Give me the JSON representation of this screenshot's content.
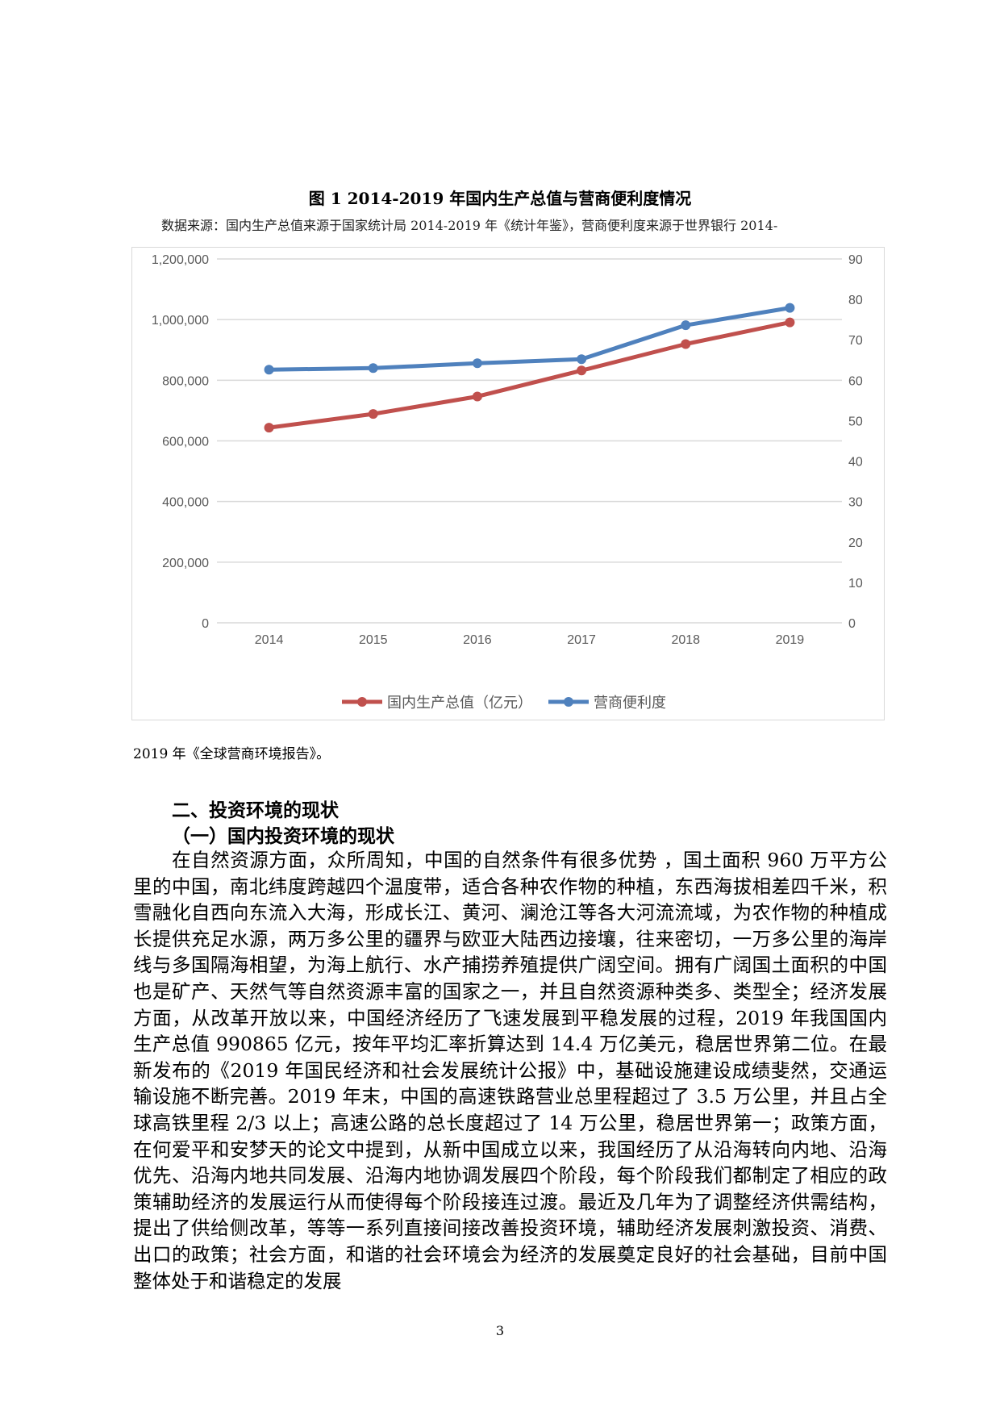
{
  "figure": {
    "title": "图 1  2014-2019 年国内生产总值与营商便利度情况",
    "source": "数据来源：国内生产总值来源于国家统计局 2014-2019 年《统计年鉴》，营商便利度来源于世界银行 2014-",
    "source_tail": "2019 年《全球营商环境报告》。"
  },
  "chart_data": {
    "type": "line",
    "categories": [
      "2014",
      "2015",
      "2016",
      "2017",
      "2018",
      "2019"
    ],
    "series": [
      {
        "name": "国内生产总值（亿元）",
        "axis": "left",
        "color": "#c0504d",
        "values": [
          643563,
          688858,
          746395,
          832036,
          919281,
          990865
        ]
      },
      {
        "name": "营商便利度",
        "axis": "right",
        "color": "#4f81bd",
        "values": [
          62.6,
          63.0,
          64.2,
          65.2,
          73.6,
          77.9
        ]
      }
    ],
    "y_left": {
      "range": [
        0,
        1200000
      ],
      "ticks": [
        "0",
        "200,000",
        "400,000",
        "600,000",
        "800,000",
        "1,000,000",
        "1,200,000"
      ]
    },
    "y_right": {
      "range": [
        0,
        90
      ],
      "ticks": [
        "0",
        "10",
        "20",
        "30",
        "40",
        "50",
        "60",
        "70",
        "80",
        "90"
      ]
    },
    "grid": true,
    "legend": "bottom"
  },
  "section": {
    "heading": "二、投资环境的现状",
    "subheading": "（一）国内投资环境的现状",
    "paragraph": "在自然资源方面，众所周知，中国的自然条件有很多优势 ，国土面积 960 万平方公里的中国，南北纬度跨越四个温度带，适合各种农作物的种植，东西海拔相差四千米，积雪融化自西向东流入大海，形成长江、黄河、澜沧江等各大河流流域，为农作物的种植成长提供充足水源，两万多公里的疆界与欧亚大陆西边接壤，往来密切，一万多公里的海岸线与多国隔海相望，为海上航行、水产捕捞养殖提供广阔空间。拥有广阔国土面积的中国也是矿产、天然气等自然资源丰富的国家之一，并且自然资源种类多、类型全；经济发展方面，从改革开放以来，中国经济经历了飞速发展到平稳发展的过程，2019 年我国国内生产总值 990865 亿元，按年平均汇率折算达到 14.4 万亿美元，稳居世界第二位。在最新发布的《2019 年国民经济和社会发展统计公报》中，基础设施建设成绩斐然，交通运输设施不断完善。2019 年末，中国的高速铁路营业总里程超过了 3.5 万公里，并且占全球高铁里程 2/3 以上；高速公路的总长度超过了 14 万公里，稳居世界第一；政策方面，在何爱平和安梦天的论文中提到，从新中国成立以来，我国经历了从沿海转向内地、沿海优先、沿海内地共同发展、沿海内地协调发展四个阶段，每个阶段我们都制定了相应的政策辅助经济的发展运行从而使得每个阶段接连过渡。最近及几年为了调整经济供需结构，提出了供给侧改革，等等一系列直接间接改善投资环境，辅助经济发展刺激投资、消费、出口的政策；社会方面，和谐的社会环境会为经济的发展奠定良好的社会基础，目前中国整体处于和谐稳定的发展"
  },
  "page_number": "3"
}
